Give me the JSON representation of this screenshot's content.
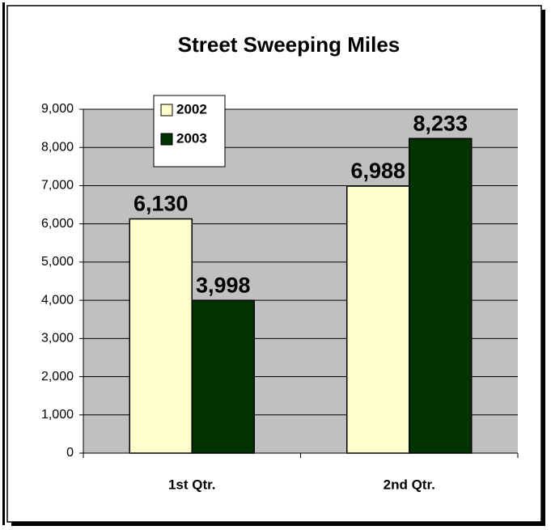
{
  "chart_data": {
    "type": "bar",
    "title": "Street Sweeping Miles",
    "categories": [
      "1st Qtr.",
      "2nd Qtr."
    ],
    "series": [
      {
        "name": "2002",
        "color": "#ffffcc",
        "values": [
          6130,
          6988
        ],
        "value_labels": [
          "6,130",
          "6,988"
        ]
      },
      {
        "name": "2003",
        "color": "#003300",
        "values": [
          3998,
          8233
        ],
        "value_labels": [
          "3,998",
          "8,233"
        ]
      }
    ],
    "ylim": [
      0,
      9000
    ],
    "yticks": [
      0,
      {
        "value": 1000,
        "label": "1,000"
      },
      {
        "value": 2000,
        "label": "2,000"
      },
      {
        "value": 3000,
        "label": "3,000"
      },
      {
        "value": 4000,
        "label": "4,000"
      },
      {
        "value": 5000,
        "label": "5,000"
      },
      {
        "value": 6000,
        "label": "6,000"
      },
      {
        "value": 7000,
        "label": "7,000"
      },
      {
        "value": 8000,
        "label": "8,000"
      },
      {
        "value": 9000,
        "label": "9,000"
      }
    ],
    "grid": true
  }
}
